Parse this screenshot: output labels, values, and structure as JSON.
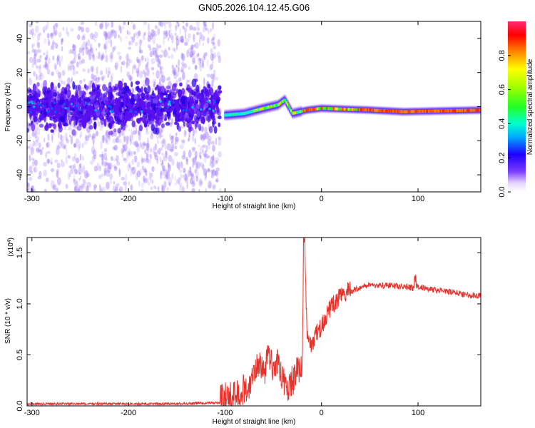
{
  "title": "GN05.2026.104.12.45.G06",
  "colors": {
    "line": "#e8312a",
    "axis": "#000000"
  },
  "chart_data": [
    {
      "type": "heatmap",
      "xlabel": "Height of straight line (km)",
      "ylabel": "Frequency (Hz)",
      "xlim": [
        -305,
        165
      ],
      "ylim": [
        -50,
        50
      ],
      "xticks": [
        -300,
        -200,
        -100,
        0,
        100
      ],
      "xtick_labels": [
        "-300",
        "-200",
        "-100",
        "0",
        "100"
      ],
      "yticks": [
        -40,
        -20,
        0,
        20,
        40
      ],
      "ytick_labels": [
        "-40",
        "-20",
        "0",
        "20",
        "40"
      ],
      "colorbar": {
        "label": "Normalized spectral amplitude",
        "range": [
          0,
          1
        ],
        "ticks": [
          0.0,
          0.2,
          0.4,
          0.6,
          0.8
        ],
        "tick_labels": [
          "0.0",
          "0.2",
          "0.4",
          "0.6",
          "0.8"
        ]
      },
      "features": {
        "noise_region_x": [
          -305,
          -105
        ],
        "signal_track": [
          {
            "x": -100,
            "f": -5
          },
          {
            "x": -80,
            "f": -4
          },
          {
            "x": -60,
            "f": -1
          },
          {
            "x": -45,
            "f": 1
          },
          {
            "x": -38,
            "f": 4
          },
          {
            "x": -30,
            "f": -4
          },
          {
            "x": -15,
            "f": -2
          },
          {
            "x": 0,
            "f": -1
          },
          {
            "x": 50,
            "f": -2
          },
          {
            "x": 85,
            "f": -3
          },
          {
            "x": 165,
            "f": -2
          }
        ]
      }
    },
    {
      "type": "line",
      "xlabel": "Height of straight line (km)",
      "ylabel": "SNR (10 * v/v)",
      "multiplier": "(x10",
      "multiplier_exp": "4",
      "multiplier_close": ")",
      "xlim": [
        -305,
        165
      ],
      "ylim": [
        0,
        1.65
      ],
      "xticks": [
        -300,
        -200,
        -100,
        0,
        100
      ],
      "xtick_labels": [
        "-300",
        "-200",
        "-100",
        "0",
        "100"
      ],
      "yticks": [
        0.0,
        0.5,
        1.0,
        1.5
      ],
      "ytick_labels": [
        "0.0",
        "0.5",
        "1.0",
        "1.5"
      ],
      "series": [
        {
          "name": "SNR",
          "x": [
            -305,
            -250,
            -200,
            -150,
            -105,
            -95,
            -85,
            -75,
            -70,
            -65,
            -60,
            -55,
            -50,
            -45,
            -40,
            -35,
            -30,
            -25,
            -20,
            -18,
            -15,
            -10,
            -5,
            0,
            10,
            20,
            30,
            40,
            50,
            60,
            70,
            80,
            90,
            95,
            100,
            110,
            120,
            130,
            140,
            150,
            165
          ],
          "y": [
            0.02,
            0.02,
            0.02,
            0.02,
            0.03,
            0.03,
            0.08,
            0.15,
            0.3,
            0.4,
            0.25,
            0.45,
            0.3,
            0.4,
            0.2,
            0.15,
            0.2,
            0.3,
            0.4,
            1.65,
            0.7,
            0.55,
            0.7,
            0.75,
            0.95,
            1.05,
            1.12,
            1.16,
            1.19,
            1.18,
            1.18,
            1.17,
            1.17,
            1.15,
            1.17,
            1.15,
            1.13,
            1.12,
            1.11,
            1.09,
            1.08
          ]
        }
      ]
    }
  ]
}
